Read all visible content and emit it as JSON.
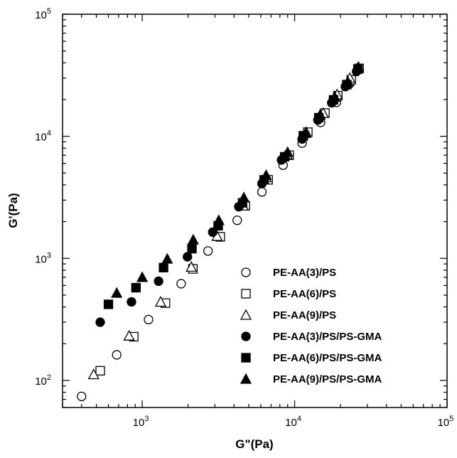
{
  "chart_data": {
    "type": "scatter",
    "title": "",
    "xlabel": "G\"(Pa)",
    "ylabel": "G'(Pa)",
    "xscale": "log",
    "yscale": "log",
    "xlim": [
      300,
      100000
    ],
    "ylim": [
      60,
      100000
    ],
    "x_ticks": [
      {
        "value": 1000,
        "base": "10",
        "exp": "3"
      },
      {
        "value": 10000,
        "base": "10",
        "exp": "4"
      },
      {
        "value": 100000,
        "base": "10",
        "exp": "5"
      }
    ],
    "y_ticks": [
      {
        "value": 100,
        "base": "10",
        "exp": "2"
      },
      {
        "value": 1000,
        "base": "10",
        "exp": "3"
      },
      {
        "value": 10000,
        "base": "10",
        "exp": "4"
      },
      {
        "value": 100000,
        "base": "10",
        "exp": "5"
      }
    ],
    "grid": false,
    "legend_position": "bottom-right",
    "series": [
      {
        "name": "PE-AA(3)/PS",
        "marker": "circle",
        "filled": false,
        "points": [
          [
            400,
            74
          ],
          [
            680,
            162
          ],
          [
            1100,
            315
          ],
          [
            1800,
            620
          ],
          [
            2700,
            1150
          ],
          [
            4200,
            2050
          ],
          [
            6100,
            3500
          ],
          [
            8400,
            5800
          ],
          [
            11200,
            8800
          ],
          [
            14800,
            13000
          ],
          [
            18800,
            19000
          ],
          [
            23000,
            27000
          ],
          [
            26000,
            35000
          ]
        ]
      },
      {
        "name": "PE-AA(6)/PS",
        "marker": "square",
        "filled": false,
        "points": [
          [
            530,
            120
          ],
          [
            880,
            228
          ],
          [
            1420,
            430
          ],
          [
            2150,
            820
          ],
          [
            3250,
            1500
          ],
          [
            4750,
            2700
          ],
          [
            6700,
            4400
          ],
          [
            9200,
            7000
          ],
          [
            12200,
            10800
          ],
          [
            15800,
            15500
          ],
          [
            19200,
            21500
          ],
          [
            23500,
            29000
          ],
          [
            26500,
            36000
          ]
        ]
      },
      {
        "name": "PE-AA(9)/PS",
        "marker": "triangle",
        "filled": false,
        "points": [
          [
            480,
            112
          ],
          [
            820,
            232
          ],
          [
            1320,
            440
          ],
          [
            2100,
            850
          ],
          [
            3100,
            1520
          ],
          [
            4600,
            2700
          ],
          [
            6500,
            4600
          ],
          [
            8900,
            7100
          ],
          [
            11900,
            10800
          ],
          [
            15400,
            15500
          ],
          [
            19000,
            22000
          ],
          [
            23000,
            30000
          ]
        ]
      },
      {
        "name": "PE-AA(3)/PS/PS-GMA",
        "marker": "circle",
        "filled": true,
        "points": [
          [
            530,
            300
          ],
          [
            850,
            440
          ],
          [
            1280,
            650
          ],
          [
            1980,
            1030
          ],
          [
            2900,
            1640
          ],
          [
            4300,
            2650
          ],
          [
            6100,
            4100
          ],
          [
            8200,
            6400
          ],
          [
            11200,
            9500
          ],
          [
            14200,
            13600
          ],
          [
            17500,
            18800
          ],
          [
            21500,
            25500
          ],
          [
            25500,
            34000
          ]
        ]
      },
      {
        "name": "PE-AA(6)/PS/PS-GMA",
        "marker": "square",
        "filled": true,
        "points": [
          [
            600,
            420
          ],
          [
            910,
            575
          ],
          [
            1380,
            840
          ],
          [
            2120,
            1200
          ],
          [
            3150,
            1850
          ],
          [
            4550,
            2850
          ],
          [
            6300,
            4400
          ],
          [
            8600,
            6800
          ],
          [
            11400,
            10100
          ],
          [
            14400,
            14200
          ],
          [
            18000,
            19900
          ],
          [
            22000,
            26500
          ],
          [
            26000,
            35500
          ]
        ]
      },
      {
        "name": "PE-AA(9)/PS/PS-GMA",
        "marker": "triangle",
        "filled": true,
        "points": [
          [
            680,
            520
          ],
          [
            1000,
            700
          ],
          [
            1460,
            990
          ],
          [
            2160,
            1420
          ],
          [
            3180,
            2050
          ],
          [
            4640,
            3150
          ],
          [
            6500,
            4800
          ],
          [
            9000,
            7400
          ],
          [
            11800,
            10600
          ],
          [
            14700,
            15000
          ],
          [
            18300,
            21000
          ],
          [
            22300,
            28000
          ],
          [
            26200,
            37000
          ]
        ]
      }
    ]
  }
}
